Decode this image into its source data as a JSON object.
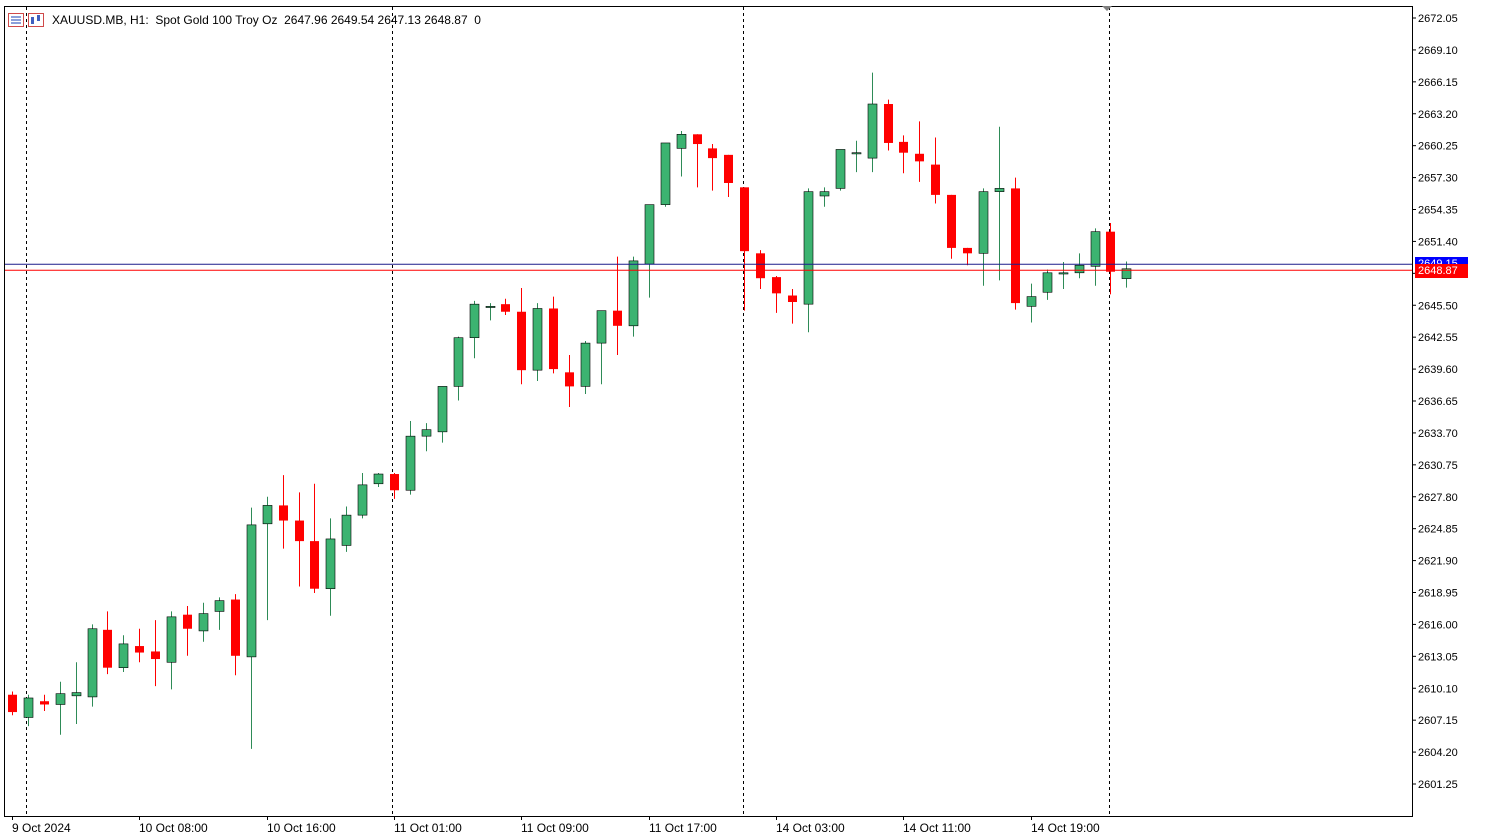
{
  "header": {
    "symbol": "XAUUSD.MB",
    "timeframe": "H1:",
    "description": "Spot Gold 100 Troy Oz",
    "ohlc": "2647.96 2649.54 2647.13 2648.87",
    "volume": "0",
    "icons": [
      "bars-menu-icon",
      "chart-type-icon"
    ]
  },
  "colors": {
    "bull": "#3cb371",
    "bear": "#ff0000",
    "ask_line": "#1c1c8c",
    "bid_line": "#ff0000",
    "ask_tag": "#0000ff",
    "bid_tag": "#ff0000"
  },
  "price_tags": {
    "ask": "2649.15",
    "bid": "2648.87"
  },
  "chart_data": {
    "type": "candlestick",
    "title": "XAUUSD.MB, H1: Spot Gold 100 Troy Oz",
    "ylim": [
      2599.0,
      2673.5
    ],
    "y_ticks": [
      "2672.05",
      "2669.10",
      "2666.15",
      "2663.20",
      "2660.25",
      "2657.30",
      "2654.35",
      "2651.40",
      "2648.45",
      "2645.50",
      "2642.55",
      "2639.60",
      "2636.65",
      "2633.70",
      "2630.75",
      "2627.80",
      "2624.85",
      "2621.90",
      "2618.95",
      "2616.00",
      "2613.05",
      "2610.10",
      "2607.15",
      "2604.20",
      "2601.25"
    ],
    "x_labels": [
      "9 Oct 2024",
      "10 Oct 08:00",
      "10 Oct 16:00",
      "11 Oct 01:00",
      "11 Oct 09:00",
      "11 Oct 17:00",
      "14 Oct 03:00",
      "14 Oct 11:00",
      "14 Oct 19:00"
    ],
    "x_label_bar_index": [
      0,
      8,
      16,
      24,
      32,
      40,
      48,
      56,
      64
    ],
    "separators_bar_index": [
      0.9,
      23.9,
      45.9,
      68.9
    ],
    "current_ask": 2649.15,
    "current_bid": 2648.87,
    "candles": [
      [
        2609.5,
        2609.8,
        2607.6,
        2607.9
      ],
      [
        2607.4,
        2609.5,
        2606.6,
        2609.2
      ],
      [
        2608.9,
        2609.5,
        2608.0,
        2608.6
      ],
      [
        2608.6,
        2610.7,
        2605.8,
        2609.6
      ],
      [
        2609.4,
        2612.5,
        2606.8,
        2609.7
      ],
      [
        2609.3,
        2616.0,
        2608.4,
        2615.6
      ],
      [
        2615.5,
        2617.2,
        2611.4,
        2612.0
      ],
      [
        2612.0,
        2615.0,
        2611.6,
        2614.2
      ],
      [
        2614.0,
        2615.6,
        2612.5,
        2613.4
      ],
      [
        2613.5,
        2616.4,
        2610.3,
        2612.8
      ],
      [
        2612.5,
        2617.2,
        2610.0,
        2616.7
      ],
      [
        2616.9,
        2617.7,
        2613.1,
        2615.6
      ],
      [
        2615.4,
        2618.0,
        2614.4,
        2617.0
      ],
      [
        2617.2,
        2618.5,
        2615.5,
        2618.2
      ],
      [
        2618.3,
        2618.8,
        2611.3,
        2613.1
      ],
      [
        2613.0,
        2626.8,
        2604.5,
        2625.2
      ],
      [
        2625.3,
        2627.8,
        2616.4,
        2627.0
      ],
      [
        2627.0,
        2629.8,
        2623.0,
        2625.6
      ],
      [
        2625.6,
        2628.2,
        2619.5,
        2623.7
      ],
      [
        2623.7,
        2629.0,
        2618.9,
        2619.3
      ],
      [
        2619.3,
        2625.8,
        2616.8,
        2623.9
      ],
      [
        2623.3,
        2626.9,
        2622.7,
        2626.1
      ],
      [
        2626.1,
        2630.0,
        2625.8,
        2628.9
      ],
      [
        2629.0,
        2630.0,
        2628.7,
        2629.9
      ],
      [
        2629.9,
        2630.0,
        2627.6,
        2628.4
      ],
      [
        2628.4,
        2634.8,
        2628.0,
        2633.4
      ],
      [
        2633.4,
        2634.6,
        2632.0,
        2634.0
      ],
      [
        2633.8,
        2638.0,
        2632.8,
        2638.0
      ],
      [
        2638.0,
        2642.6,
        2636.7,
        2642.5
      ],
      [
        2642.5,
        2645.9,
        2640.6,
        2645.6
      ],
      [
        2645.4,
        2645.7,
        2644.1,
        2645.4
      ],
      [
        2645.6,
        2646.1,
        2644.6,
        2644.9
      ],
      [
        2644.9,
        2647.1,
        2638.2,
        2639.5
      ],
      [
        2639.5,
        2645.7,
        2638.5,
        2645.2
      ],
      [
        2645.2,
        2646.3,
        2639.2,
        2639.6
      ],
      [
        2639.3,
        2640.9,
        2636.1,
        2638.0
      ],
      [
        2638.0,
        2642.2,
        2637.3,
        2642.0
      ],
      [
        2642.0,
        2645.0,
        2638.2,
        2645.0
      ],
      [
        2645.0,
        2650.0,
        2640.9,
        2643.6
      ],
      [
        2643.6,
        2650.0,
        2642.6,
        2649.6
      ],
      [
        2649.3,
        2654.6,
        2646.2,
        2654.8
      ],
      [
        2654.8,
        2660.2,
        2654.6,
        2660.5
      ],
      [
        2660.0,
        2661.6,
        2657.4,
        2661.3
      ],
      [
        2661.3,
        2661.3,
        2656.4,
        2660.4
      ],
      [
        2660.0,
        2660.4,
        2656.1,
        2659.1
      ],
      [
        2659.4,
        2659.4,
        2655.5,
        2656.8
      ],
      [
        2656.4,
        2656.4,
        2645.0,
        2650.5
      ],
      [
        2650.3,
        2650.6,
        2647.0,
        2648.0
      ],
      [
        2648.1,
        2648.2,
        2644.8,
        2646.6
      ],
      [
        2646.4,
        2647.0,
        2643.8,
        2645.8
      ],
      [
        2645.6,
        2656.3,
        2643.0,
        2656.0
      ],
      [
        2655.6,
        2656.4,
        2654.6,
        2656.0
      ],
      [
        2656.3,
        2659.9,
        2656.1,
        2659.9
      ],
      [
        2659.6,
        2660.7,
        2657.8,
        2659.6
      ],
      [
        2659.1,
        2667.0,
        2657.8,
        2664.1
      ],
      [
        2664.1,
        2664.5,
        2659.8,
        2660.5
      ],
      [
        2660.6,
        2661.2,
        2657.7,
        2659.6
      ],
      [
        2659.5,
        2662.5,
        2656.9,
        2658.8
      ],
      [
        2658.5,
        2661.0,
        2654.9,
        2655.7
      ],
      [
        2655.7,
        2655.7,
        2649.8,
        2650.8
      ],
      [
        2650.8,
        2650.8,
        2649.2,
        2650.3
      ],
      [
        2650.3,
        2656.3,
        2647.3,
        2656.0
      ],
      [
        2656.0,
        2662.0,
        2647.8,
        2656.3
      ],
      [
        2656.3,
        2657.3,
        2645.1,
        2645.7
      ],
      [
        2645.4,
        2647.5,
        2643.9,
        2646.3
      ],
      [
        2646.7,
        2648.8,
        2646.0,
        2648.5
      ],
      [
        2648.5,
        2649.5,
        2647.0,
        2648.5
      ],
      [
        2648.5,
        2650.3,
        2648.0,
        2649.2
      ],
      [
        2649.1,
        2652.6,
        2647.3,
        2652.3
      ],
      [
        2652.3,
        2653.1,
        2646.5,
        2648.6
      ],
      [
        2647.96,
        2649.54,
        2647.13,
        2648.87
      ]
    ]
  }
}
